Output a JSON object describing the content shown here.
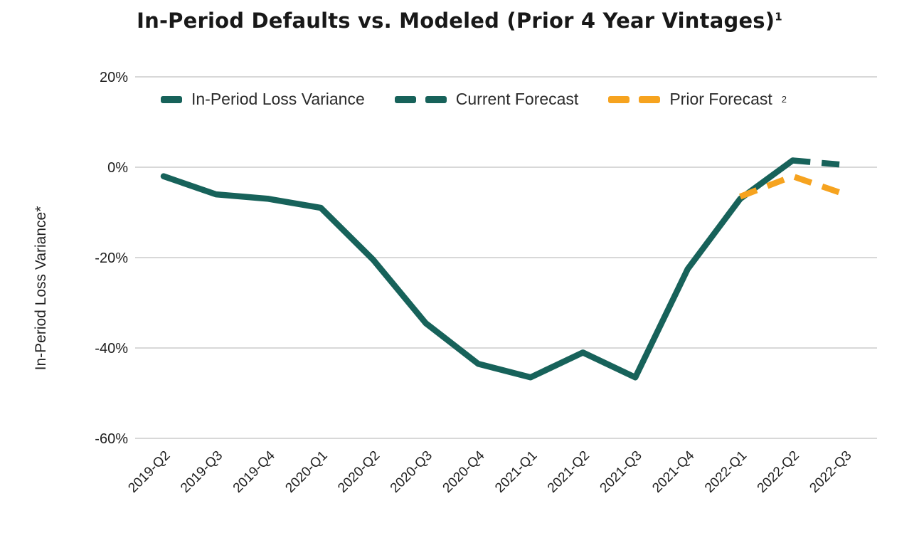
{
  "title": {
    "text": "In-Period Defaults vs. Modeled (Prior 4 Year Vintages)",
    "superscript": "1"
  },
  "y_axis_title": "In-Period Loss Variance*",
  "legend": {
    "items": [
      {
        "label": "In-Period Loss Variance",
        "superscript": "",
        "color": "#17625a",
        "style": "solid"
      },
      {
        "label": "Current Forecast",
        "superscript": "",
        "color": "#17625a",
        "style": "dashed"
      },
      {
        "label": "Prior Forecast",
        "superscript": "2",
        "color": "#f6a31f",
        "style": "dashed"
      }
    ]
  },
  "colors": {
    "teal": "#17625a",
    "orange": "#f6a31f",
    "grid": "#cccccc",
    "text": "#1f1f1f"
  },
  "chart_data": {
    "type": "line",
    "title": "In-Period Defaults vs. Modeled (Prior 4 Year Vintages)",
    "ylabel": "In-Period Loss Variance*",
    "xlabel": "",
    "grid": true,
    "legend_position": "top-inside",
    "ylim": [
      -60,
      20
    ],
    "yticks": [
      20,
      0,
      -20,
      -40,
      -60
    ],
    "ytick_labels": [
      "20%",
      "0%",
      "-20%",
      "-40%",
      "-60%"
    ],
    "categories": [
      "2019-Q2",
      "2019-Q3",
      "2019-Q4",
      "2020-Q1",
      "2020-Q2",
      "2020-Q3",
      "2020-Q4",
      "2021-Q1",
      "2021-Q2",
      "2021-Q3",
      "2021-Q4",
      "2022-Q1",
      "2022-Q2",
      "2022-Q3"
    ],
    "series": [
      {
        "name": "In-Period Loss Variance",
        "style": "solid",
        "color": "#17625a",
        "values": [
          -2,
          -6,
          -7,
          -9,
          -20.5,
          -34.5,
          -43.5,
          -46.5,
          -41,
          -46.5,
          -22.5,
          -7,
          1.5,
          null
        ]
      },
      {
        "name": "Current Forecast",
        "style": "dashed",
        "color": "#17625a",
        "values": [
          null,
          null,
          null,
          null,
          null,
          null,
          null,
          null,
          null,
          null,
          null,
          null,
          1.5,
          0.5
        ]
      },
      {
        "name": "Prior Forecast",
        "style": "dashed",
        "color": "#f6a31f",
        "values": [
          null,
          null,
          null,
          null,
          null,
          null,
          null,
          null,
          null,
          null,
          null,
          -6.5,
          -2,
          -6
        ]
      }
    ]
  }
}
